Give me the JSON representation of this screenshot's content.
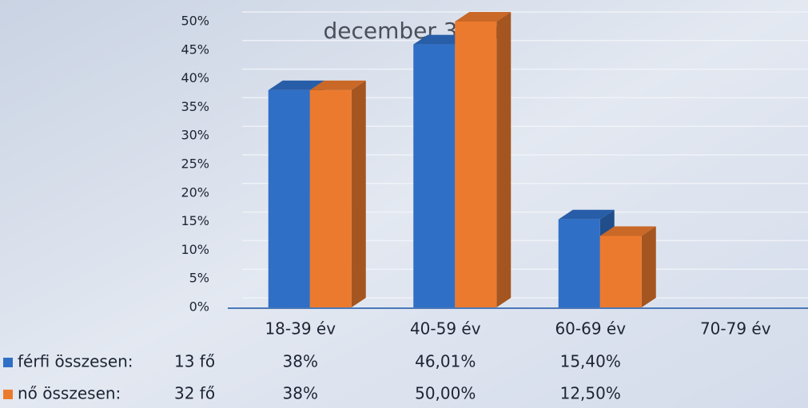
{
  "chart_data": {
    "type": "bar3d",
    "title": "december 31-én",
    "categories": [
      "18-39 év",
      "40-59 év",
      "60-69 év",
      "70-79 év"
    ],
    "series": [
      {
        "name": "férfi összesen:",
        "total": "13 fő",
        "color": "#2f6fc6",
        "values": [
          38,
          46.01,
          15.4,
          null
        ],
        "value_labels": [
          "38%",
          "46,01%",
          "15,40%",
          null
        ]
      },
      {
        "name": "nő összesen:",
        "total": "32 fő",
        "color": "#ec7a2e",
        "values": [
          38,
          50.0,
          12.5,
          null
        ],
        "value_labels": [
          "38%",
          "50,00%",
          "12,50%",
          null
        ]
      }
    ],
    "ylim": [
      0,
      50
    ],
    "yticks": [
      {
        "value": 0,
        "label": "0%"
      },
      {
        "value": 5,
        "label": "5%"
      },
      {
        "value": 10,
        "label": "10%"
      },
      {
        "value": 15,
        "label": "15%"
      },
      {
        "value": 20,
        "label": "20%"
      },
      {
        "value": 25,
        "label": "25%"
      },
      {
        "value": 30,
        "label": "30%"
      },
      {
        "value": 35,
        "label": "35%"
      },
      {
        "value": 40,
        "label": "40%"
      },
      {
        "value": 45,
        "label": "45%"
      },
      {
        "value": 50,
        "label": "50%"
      }
    ],
    "grid": true
  }
}
